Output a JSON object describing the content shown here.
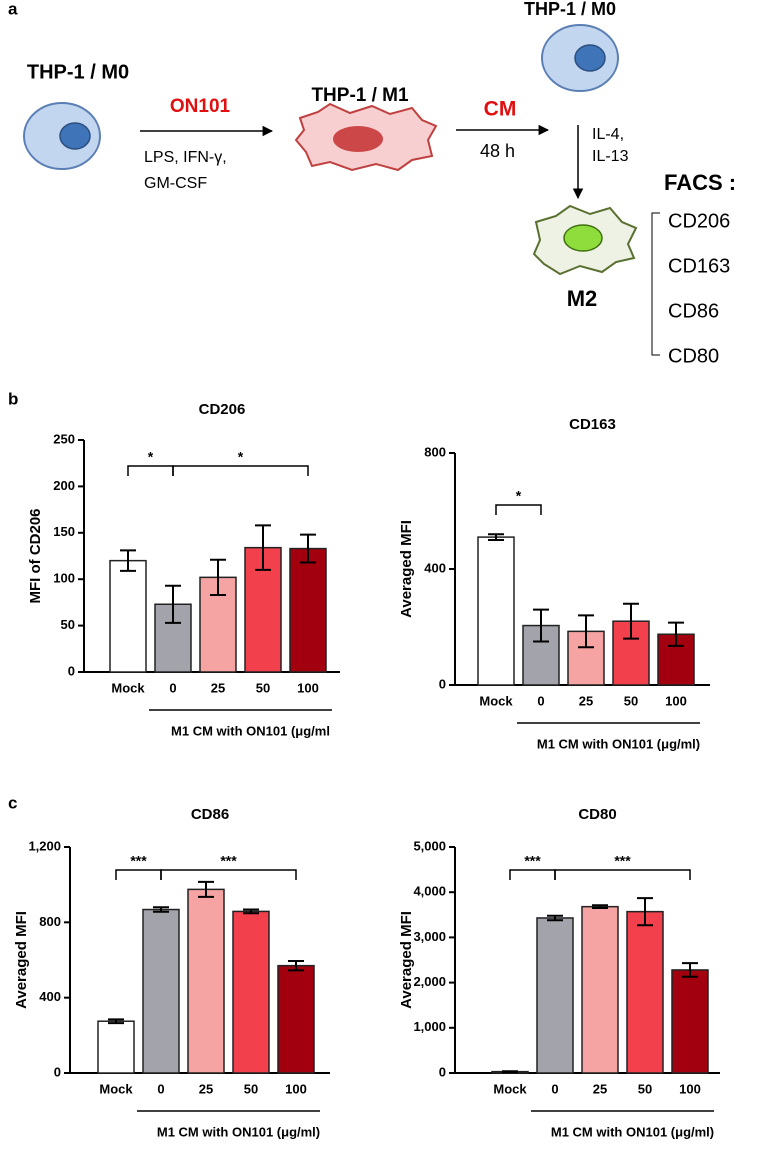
{
  "panel_a": {
    "label": "a",
    "m0_left": "THP-1 / M0",
    "treatment": "ON101",
    "stimuli_1": "LPS, IFN-γ,",
    "stimuli_2": "GM-CSF",
    "m1": "THP-1 / M1",
    "cm": "CM",
    "duration": "48 h",
    "m0_right": "THP-1 / M0",
    "cytokines_1": "IL-4,",
    "cytokines_2": "IL-13",
    "facs": "FACS :",
    "m2": "M2",
    "markers": [
      "CD206",
      "CD163",
      "CD86",
      "CD80"
    ]
  },
  "panel_b_label": "b",
  "panel_c_label": "c",
  "chart_data": [
    {
      "type": "bar",
      "title": "CD206",
      "ylabel": "MFI of CD206",
      "xlabel": "M1 CM with ON101 (μg/ml",
      "categories": [
        "Mock",
        "0",
        "25",
        "50",
        "100"
      ],
      "values": [
        120,
        73,
        102,
        134,
        133
      ],
      "errors": [
        11,
        20,
        19,
        24,
        15
      ],
      "colors": [
        "#ffffff",
        "#a3a3ab",
        "#f6a3a3",
        "#f2404c",
        "#a3000f"
      ],
      "ylim": [
        0,
        250
      ],
      "yticks": [
        0,
        50,
        100,
        150,
        200,
        250
      ],
      "significance": [
        {
          "from": "Mock",
          "to": "0",
          "label": "*"
        },
        {
          "from": "0",
          "to": "100",
          "label": "*"
        }
      ]
    },
    {
      "type": "bar",
      "title": "CD163",
      "ylabel": "Averaged MFI",
      "xlabel": "M1 CM with ON101 (μg/ml)",
      "categories": [
        "Mock",
        "0",
        "25",
        "50",
        "100"
      ],
      "values": [
        510,
        205,
        185,
        220,
        175
      ],
      "errors": [
        10,
        55,
        55,
        60,
        40
      ],
      "colors": [
        "#ffffff",
        "#a3a3ab",
        "#f6a3a3",
        "#f2404c",
        "#a3000f"
      ],
      "ylim": [
        0,
        800
      ],
      "yticks": [
        0,
        400,
        800
      ],
      "significance": [
        {
          "from": "Mock",
          "to": "0",
          "label": "*"
        }
      ]
    },
    {
      "type": "bar",
      "title": "CD86",
      "ylabel": "Averaged MFI",
      "xlabel": "M1 CM with ON101 (μg/ml)",
      "categories": [
        "Mock",
        "0",
        "25",
        "50",
        "100"
      ],
      "values": [
        275,
        868,
        975,
        858,
        570
      ],
      "errors": [
        10,
        12,
        40,
        10,
        25
      ],
      "colors": [
        "#ffffff",
        "#a3a3ab",
        "#f6a3a3",
        "#f2404c",
        "#a3000f"
      ],
      "ylim": [
        0,
        1200
      ],
      "yticks": [
        0,
        400,
        800,
        {
          "value": 1200,
          "label": "1,200"
        }
      ],
      "significance": [
        {
          "from": "Mock",
          "to": "0",
          "label": "***"
        },
        {
          "from": "0",
          "to": "100",
          "label": "***"
        }
      ]
    },
    {
      "type": "bar",
      "title": "CD80",
      "ylabel": "Averaged MFI",
      "xlabel": "M1 CM with ON101 (μg/ml)",
      "categories": [
        "Mock",
        "0",
        "25",
        "50",
        "100"
      ],
      "values": [
        30,
        3430,
        3680,
        3570,
        2280
      ],
      "errors": [
        10,
        50,
        30,
        300,
        150
      ],
      "colors": [
        "#ffffff",
        "#a3a3ab",
        "#f6a3a3",
        "#f2404c",
        "#a3000f"
      ],
      "ylim": [
        0,
        5000
      ],
      "yticks": [
        0,
        {
          "value": 1000,
          "label": "1,000"
        },
        {
          "value": 2000,
          "label": "2,000"
        },
        {
          "value": 3000,
          "label": "3,000"
        },
        {
          "value": 4000,
          "label": "4,000"
        },
        {
          "value": 5000,
          "label": "5,000"
        }
      ],
      "significance": [
        {
          "from": "Mock",
          "to": "0",
          "label": "***"
        },
        {
          "from": "0",
          "to": "100",
          "label": "***"
        }
      ]
    }
  ]
}
